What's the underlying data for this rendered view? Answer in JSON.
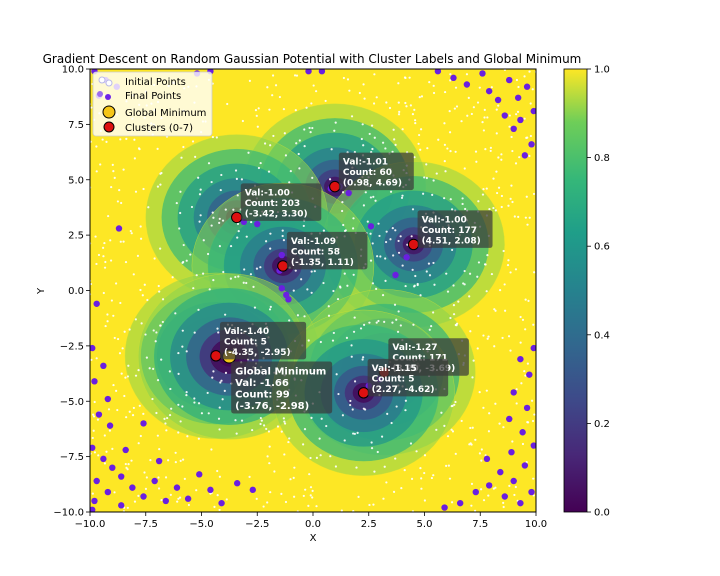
{
  "chart_data": {
    "type": "scatter",
    "title": "Gradient Descent on Random Gaussian Potential with Cluster Labels and Global Minimum",
    "xlabel": "X",
    "ylabel": "Y",
    "xlim": [
      -10,
      10
    ],
    "ylim": [
      -10,
      10
    ],
    "x_ticks": [
      "−10.0",
      "−7.5",
      "−5.0",
      "−2.5",
      "0.0",
      "2.5",
      "5.0",
      "7.5",
      "10.0"
    ],
    "y_ticks": [
      "−10.0",
      "−7.5",
      "−5.0",
      "−2.5",
      "0.0",
      "2.5",
      "5.0",
      "7.5",
      "10.0"
    ],
    "x_tick_values": [
      -10,
      -7.5,
      -5,
      -2.5,
      0,
      2.5,
      5,
      7.5,
      10
    ],
    "y_tick_values": [
      -10,
      -7.5,
      -5,
      -2.5,
      0,
      2.5,
      5,
      7.5,
      10
    ],
    "colorbar": {
      "range": [
        0.0,
        1.0
      ],
      "ticks": [
        "0.0",
        "0.2",
        "0.4",
        "0.6",
        "0.8",
        "1.0"
      ],
      "tick_values": [
        0,
        0.2,
        0.4,
        0.6,
        0.8,
        1.0
      ],
      "colormap": "viridis"
    },
    "legend": {
      "placement": "top-left",
      "entries": [
        "Initial Points",
        "Final Points",
        "Global Minimum",
        "Clusters (0-7)"
      ]
    },
    "wells": [
      {
        "x": 0.98,
        "y": 4.69,
        "depth": -1.01
      },
      {
        "x": -3.42,
        "y": 3.3,
        "depth": -1.0
      },
      {
        "x": 4.51,
        "y": 2.08,
        "depth": -1.0
      },
      {
        "x": -1.35,
        "y": 1.11,
        "depth": -1.09
      },
      {
        "x": -4.35,
        "y": -2.95,
        "depth": -1.4
      },
      {
        "x": -3.76,
        "y": -2.98,
        "depth": -1.66
      },
      {
        "x": 3.2,
        "y": -3.69,
        "depth": -1.27
      },
      {
        "x": 2.27,
        "y": -4.62,
        "depth": -1.15
      }
    ],
    "clusters": [
      {
        "x": 0.98,
        "y": 4.69,
        "label": "Val:-1.01\nCount: 60\n(0.98, 4.69)"
      },
      {
        "x": -3.42,
        "y": 3.3,
        "label": "Val:-1.00\nCount: 203\n(-3.42, 3.30)"
      },
      {
        "x": 4.51,
        "y": 2.08,
        "label": "Val:-1.00\nCount: 177\n(4.51, 2.08)"
      },
      {
        "x": -1.35,
        "y": 1.11,
        "label": "Val:-1.09\nCount: 58\n(-1.35, 1.11)"
      },
      {
        "x": -4.35,
        "y": -2.95,
        "label": "Val:-1.40\nCount: 5\n(-4.35, -2.95)"
      },
      {
        "x": 3.2,
        "y": -3.69,
        "label": "Val:-1.27\nCount: 171\n(3.20, -3.69)"
      },
      {
        "x": 2.27,
        "y": -4.62,
        "label": "Val:-1.15\nCount: 5\n(2.27, -4.62)"
      }
    ],
    "global_minimum": {
      "x": -3.76,
      "y": -2.98,
      "label": "Global Minimum\nVal: -1.66\nCount: 99\n (-3.76, -2.98)"
    },
    "final_points_sample": [
      [
        -9.8,
        9.9
      ],
      [
        -9.3,
        9.5
      ],
      [
        -9.6,
        8.8
      ],
      [
        -8.8,
        9.2
      ],
      [
        -5.2,
        9.8
      ],
      [
        -4.6,
        9.9
      ],
      [
        -0.2,
        9.9
      ],
      [
        0.4,
        9.9
      ],
      [
        5.6,
        9.9
      ],
      [
        6.3,
        9.6
      ],
      [
        6.9,
        9.3
      ],
      [
        7.6,
        9.8
      ],
      [
        7.9,
        9.0
      ],
      [
        8.3,
        8.6
      ],
      [
        8.8,
        9.5
      ],
      [
        9.2,
        8.7
      ],
      [
        9.6,
        9.2
      ],
      [
        9.9,
        8.1
      ],
      [
        9.3,
        7.7
      ],
      [
        8.6,
        7.9
      ],
      [
        9.0,
        7.3
      ],
      [
        9.8,
        6.6
      ],
      [
        9.5,
        6.1
      ],
      [
        -9.9,
        -2.6
      ],
      [
        -9.4,
        -3.4
      ],
      [
        -9.8,
        -4.1
      ],
      [
        -9.2,
        -4.9
      ],
      [
        -9.6,
        -5.6
      ],
      [
        -9.1,
        -6.1
      ],
      [
        -9.9,
        -7.1
      ],
      [
        -9.4,
        -7.6
      ],
      [
        -9.0,
        -8.0
      ],
      [
        -9.7,
        -8.6
      ],
      [
        -9.2,
        -9.1
      ],
      [
        -8.6,
        -8.4
      ],
      [
        -8.1,
        -8.9
      ],
      [
        -7.6,
        -9.3
      ],
      [
        -7.1,
        -8.6
      ],
      [
        -6.6,
        -9.5
      ],
      [
        -6.1,
        -8.9
      ],
      [
        -5.6,
        -9.4
      ],
      [
        -5.1,
        -8.3
      ],
      [
        -4.6,
        -9.0
      ],
      [
        -4.1,
        -9.6
      ],
      [
        -3.4,
        -8.7
      ],
      [
        -2.7,
        -9.0
      ],
      [
        -8.6,
        -9.7
      ],
      [
        -9.9,
        -9.9
      ],
      [
        -7.6,
        -6.0
      ],
      [
        -8.4,
        -7.2
      ],
      [
        -6.9,
        -7.7
      ],
      [
        9.9,
        -2.6
      ],
      [
        9.3,
        -3.1
      ],
      [
        9.7,
        -3.8
      ],
      [
        9.0,
        -4.6
      ],
      [
        9.6,
        -5.3
      ],
      [
        8.8,
        -5.8
      ],
      [
        9.4,
        -6.4
      ],
      [
        9.9,
        -7.0
      ],
      [
        8.9,
        -7.3
      ],
      [
        9.5,
        -7.9
      ],
      [
        9.0,
        -8.6
      ],
      [
        8.4,
        -8.2
      ],
      [
        7.9,
        -8.8
      ],
      [
        8.6,
        -9.3
      ],
      [
        9.3,
        -9.6
      ],
      [
        7.3,
        -9.1
      ],
      [
        6.6,
        -9.6
      ],
      [
        7.8,
        -7.6
      ],
      [
        9.8,
        -9.1
      ],
      [
        5.9,
        -9.8
      ],
      [
        1.0,
        4.8
      ],
      [
        0.8,
        4.6
      ],
      [
        1.2,
        4.7
      ],
      [
        -3.1,
        3.1
      ],
      [
        -1.4,
        1.6
      ],
      [
        -1.5,
        0.9
      ],
      [
        -1.1,
        -0.4
      ],
      [
        -1.2,
        -0.2
      ],
      [
        -1.4,
        0.1
      ],
      [
        4.2,
        1.5
      ],
      [
        3.7,
        0.7
      ],
      [
        4.6,
        2.0
      ],
      [
        2.6,
        2.9
      ],
      [
        3.0,
        -4.0
      ],
      [
        2.3,
        -4.6
      ],
      [
        2.5,
        -4.3
      ],
      [
        -4.3,
        -3.0
      ],
      [
        -3.7,
        -2.8
      ],
      [
        -2.5,
        3.0
      ],
      [
        1.6,
        4.4
      ],
      [
        -9.7,
        -0.6
      ],
      [
        -8.7,
        2.8
      ],
      [
        -9.8,
        -9.5
      ]
    ]
  }
}
